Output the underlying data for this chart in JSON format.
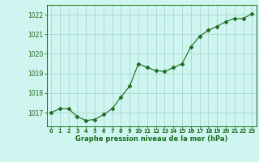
{
  "x": [
    0,
    1,
    2,
    3,
    4,
    5,
    6,
    7,
    8,
    9,
    10,
    11,
    12,
    13,
    14,
    15,
    16,
    17,
    18,
    19,
    20,
    21,
    22,
    23
  ],
  "y": [
    1017.0,
    1017.2,
    1017.2,
    1016.8,
    1016.6,
    1016.65,
    1016.9,
    1017.2,
    1017.8,
    1018.35,
    1019.5,
    1019.3,
    1019.15,
    1019.1,
    1019.3,
    1019.5,
    1020.35,
    1020.9,
    1021.2,
    1021.4,
    1021.65,
    1021.8,
    1021.8,
    1022.05
  ],
  "line_color": "#1a6b1a",
  "marker": "D",
  "marker_size": 2.5,
  "bg_color": "#cef5f0",
  "grid_color": "#a8d8d0",
  "axes_color": "#1a6b1a",
  "xlabel": "Graphe pression niveau de la mer (hPa)",
  "xlabel_color": "#1a6b1a",
  "yticks": [
    1017,
    1018,
    1019,
    1020,
    1021,
    1022
  ],
  "xtick_labels": [
    "0",
    "1",
    "2",
    "3",
    "4",
    "5",
    "6",
    "7",
    "8",
    "9",
    "10",
    "11",
    "12",
    "13",
    "14",
    "15",
    "16",
    "17",
    "18",
    "19",
    "20",
    "21",
    "22",
    "23"
  ],
  "ylim": [
    1016.3,
    1022.5
  ],
  "xlim": [
    -0.5,
    23.5
  ]
}
